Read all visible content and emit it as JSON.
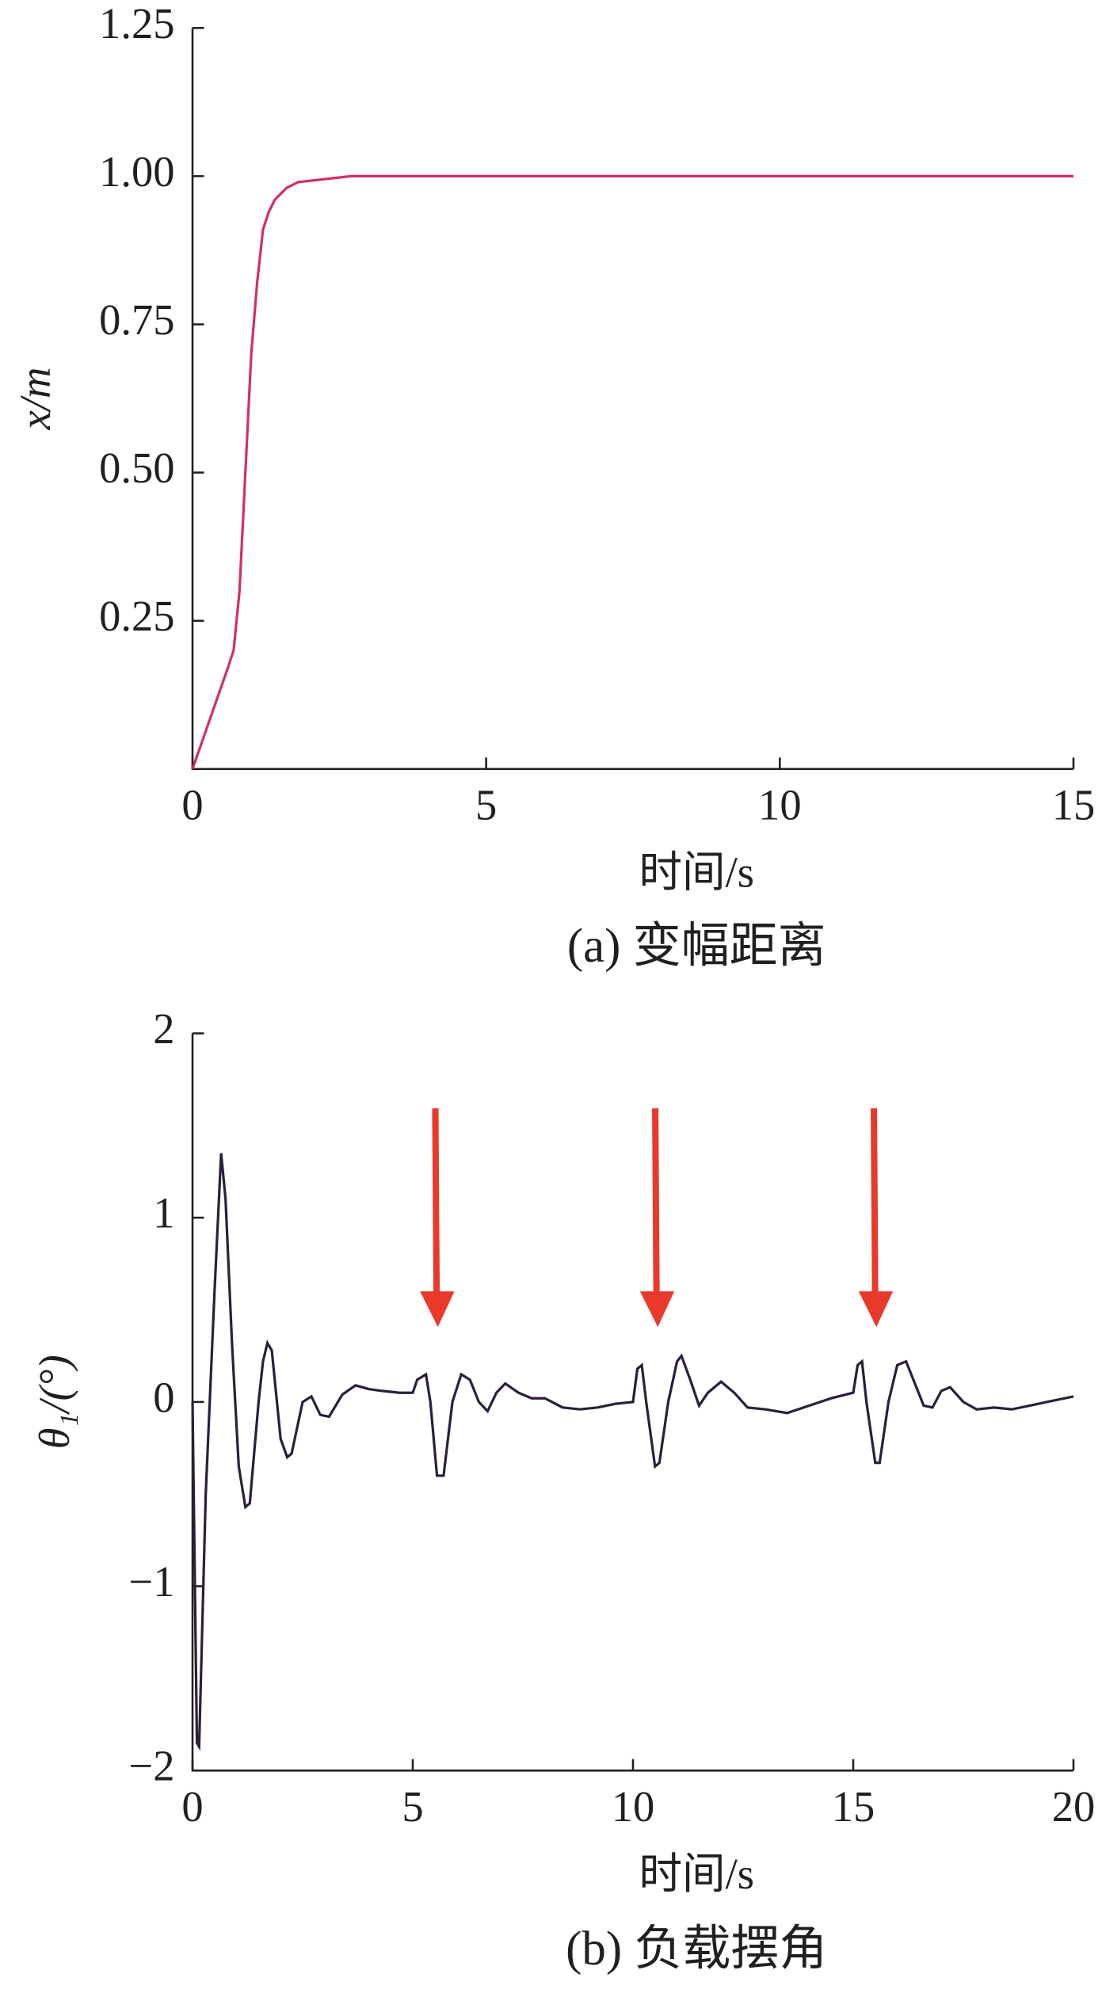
{
  "chart_data": [
    {
      "type": "line",
      "caption": "(a) 变幅距离",
      "xlabel": "时间/s",
      "ylabel": "x/m",
      "color": "#d12f6a",
      "x": [
        0,
        0.6,
        0.7,
        0.8,
        0.9,
        1.0,
        1.1,
        1.2,
        1.3,
        1.4,
        1.6,
        1.8,
        2.7,
        15
      ],
      "values": [
        0,
        0.17,
        0.2,
        0.3,
        0.5,
        0.7,
        0.82,
        0.91,
        0.94,
        0.96,
        0.98,
        0.99,
        1.0,
        1.0
      ],
      "xlim": [
        0,
        15
      ],
      "xticks": [
        0,
        5,
        10,
        15
      ],
      "ylim": [
        0,
        1.25
      ],
      "yticks": [
        0.25,
        {
          "value": 0.5,
          "label": "0.50"
        },
        0.75,
        {
          "value": 1,
          "label": "1.00"
        },
        1.25
      ]
    },
    {
      "type": "line",
      "caption": "(b) 负载摆角",
      "xlabel": "时间/s",
      "ylabel": "θ₁/(°)",
      "color": "#2b1f3a",
      "x": [
        0,
        0.1,
        0.15,
        0.3,
        0.5,
        0.65,
        0.75,
        0.9,
        1.05,
        1.2,
        1.3,
        1.5,
        1.6,
        1.7,
        1.8,
        2.0,
        2.15,
        2.25,
        2.5,
        2.7,
        2.9,
        3.1,
        3.4,
        3.7,
        4.0,
        4.3,
        4.7,
        5.0,
        5.1,
        5.3,
        5.4,
        5.55,
        5.7,
        5.9,
        6.1,
        6.3,
        6.5,
        6.7,
        6.9,
        7.1,
        7.4,
        7.7,
        8.0,
        8.4,
        8.8,
        9.2,
        9.6,
        10.0,
        10.1,
        10.2,
        10.3,
        10.5,
        10.6,
        10.8,
        11.0,
        11.1,
        11.3,
        11.5,
        11.7,
        12.0,
        12.3,
        12.6,
        13.0,
        13.5,
        14.0,
        14.5,
        15.0,
        15.1,
        15.2,
        15.3,
        15.5,
        15.6,
        15.8,
        16.0,
        16.2,
        16.4,
        16.6,
        16.8,
        17.0,
        17.2,
        17.5,
        17.8,
        18.2,
        18.6,
        19.0,
        19.4,
        20
      ],
      "values": [
        0,
        -1.85,
        -1.87,
        -0.5,
        0.6,
        1.35,
        1.1,
        0.3,
        -0.35,
        -0.57,
        -0.55,
        0.0,
        0.22,
        0.32,
        0.28,
        -0.2,
        -0.3,
        -0.28,
        0.0,
        0.03,
        -0.07,
        -0.08,
        0.04,
        0.09,
        0.07,
        0.06,
        0.05,
        0.05,
        0.12,
        0.15,
        0.0,
        -0.4,
        -0.4,
        0.0,
        0.15,
        0.12,
        0.0,
        -0.05,
        0.05,
        0.1,
        0.05,
        0.02,
        0.02,
        -0.03,
        -0.04,
        -0.03,
        -0.01,
        0.0,
        0.18,
        0.2,
        0.0,
        -0.35,
        -0.33,
        0.0,
        0.22,
        0.25,
        0.12,
        -0.02,
        0.05,
        0.11,
        0.05,
        -0.03,
        -0.04,
        -0.06,
        -0.02,
        0.02,
        0.05,
        0.2,
        0.22,
        0.0,
        -0.33,
        -0.33,
        0.0,
        0.2,
        0.22,
        0.1,
        -0.02,
        -0.03,
        0.06,
        0.08,
        0.0,
        -0.04,
        -0.03,
        -0.04,
        -0.02,
        0.0,
        0.03
      ],
      "xlim": [
        0,
        20
      ],
      "xticks": [
        0,
        5,
        10,
        15,
        20
      ],
      "ylim": [
        -2,
        2
      ],
      "yticks": [
        {
          "value": -2,
          "label": "−2"
        },
        {
          "value": -1,
          "label": "−1"
        },
        0,
        1,
        2
      ]
    }
  ]
}
